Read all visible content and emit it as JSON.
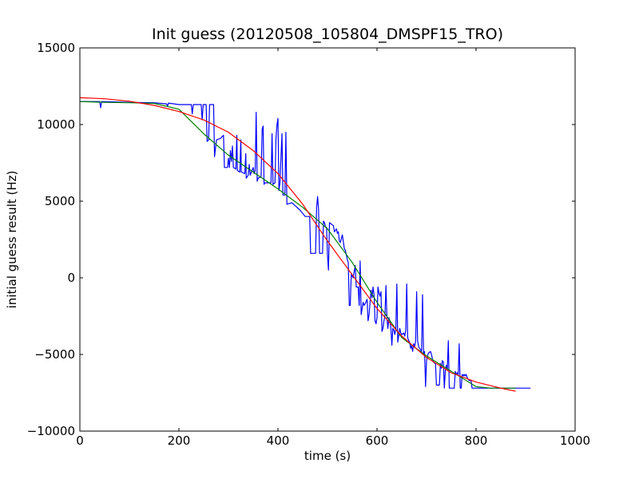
{
  "chart_data": {
    "type": "line",
    "title": "Init guess (20120508_105804_DMSPF15_TRO)",
    "xlabel": "time (s)",
    "ylabel": "initial guess result (Hz)",
    "xlim": [
      0,
      1000
    ],
    "ylim": [
      -10000,
      15000
    ],
    "xticks": [
      0,
      200,
      400,
      600,
      800,
      1000
    ],
    "yticks": [
      -10000,
      -5000,
      0,
      5000,
      10000,
      15000
    ],
    "xtick_labels": [
      "0",
      "200",
      "400",
      "600",
      "800",
      "1000"
    ],
    "ytick_labels": [
      "−10000",
      "−5000",
      "0",
      "5000",
      "10000",
      "15000"
    ],
    "grid": false,
    "legend": "none",
    "series": [
      {
        "color": "#0000ff",
        "points": [
          [
            0,
            11500
          ],
          [
            40,
            11500
          ],
          [
            42,
            11100
          ],
          [
            44,
            11500
          ],
          [
            100,
            11450
          ],
          [
            150,
            11420
          ],
          [
            175,
            11350
          ],
          [
            177,
            11200
          ],
          [
            179,
            11400
          ],
          [
            200,
            11300
          ],
          [
            225,
            11300
          ],
          [
            227,
            10700
          ],
          [
            229,
            11300
          ],
          [
            245,
            11300
          ],
          [
            247,
            10300
          ],
          [
            249,
            11300
          ],
          [
            255,
            11300
          ],
          [
            257,
            8900
          ],
          [
            260,
            9000
          ],
          [
            262,
            11300
          ],
          [
            270,
            11300
          ],
          [
            272,
            7900
          ],
          [
            274,
            8500
          ],
          [
            276,
            9000
          ],
          [
            284,
            9100
          ],
          [
            290,
            9300
          ],
          [
            292,
            7200
          ],
          [
            298,
            7200
          ],
          [
            300,
            7800
          ],
          [
            302,
            7200
          ],
          [
            304,
            8300
          ],
          [
            306,
            7600
          ],
          [
            308,
            8600
          ],
          [
            310,
            7200
          ],
          [
            315,
            7100
          ],
          [
            317,
            9300
          ],
          [
            318,
            7000
          ],
          [
            323,
            6900
          ],
          [
            325,
            9000
          ],
          [
            326,
            6900
          ],
          [
            333,
            6800
          ],
          [
            335,
            8100
          ],
          [
            336,
            6500
          ],
          [
            340,
            6700
          ],
          [
            342,
            7400
          ],
          [
            344,
            6700
          ],
          [
            350,
            7200
          ],
          [
            352,
            6800
          ],
          [
            354,
            7000
          ],
          [
            356,
            10800
          ],
          [
            358,
            6300
          ],
          [
            360,
            6500
          ],
          [
            366,
            6600
          ],
          [
            368,
            9700
          ],
          [
            370,
            9900
          ],
          [
            372,
            6100
          ],
          [
            374,
            6200
          ],
          [
            386,
            6200
          ],
          [
            388,
            9400
          ],
          [
            390,
            6100
          ],
          [
            394,
            6200
          ],
          [
            396,
            9100
          ],
          [
            398,
            10000
          ],
          [
            400,
            10400
          ],
          [
            402,
            5700
          ],
          [
            404,
            6200
          ],
          [
            408,
            9400
          ],
          [
            410,
            5400
          ],
          [
            414,
            5400
          ],
          [
            416,
            9500
          ],
          [
            418,
            4800
          ],
          [
            428,
            4900
          ],
          [
            435,
            4700
          ],
          [
            445,
            4400
          ],
          [
            450,
            4200
          ],
          [
            455,
            4000
          ],
          [
            464,
            4000
          ],
          [
            466,
            1600
          ],
          [
            476,
            1600
          ],
          [
            478,
            4600
          ],
          [
            480,
            5300
          ],
          [
            482,
            4500
          ],
          [
            484,
            1600
          ],
          [
            490,
            1600
          ],
          [
            492,
            3700
          ],
          [
            494,
            3600
          ],
          [
            496,
            3300
          ],
          [
            498,
            3300
          ],
          [
            500,
            1500
          ],
          [
            502,
            500
          ],
          [
            504,
            3600
          ],
          [
            512,
            3400
          ],
          [
            514,
            3000
          ],
          [
            518,
            3200
          ],
          [
            520,
            2900
          ],
          [
            522,
            3000
          ],
          [
            524,
            2400
          ],
          [
            526,
            2300
          ],
          [
            530,
            2800
          ],
          [
            534,
            1900
          ],
          [
            536,
            1800
          ],
          [
            540,
            1200
          ],
          [
            542,
            1000
          ],
          [
            544,
            -1800
          ],
          [
            546,
            -1800
          ],
          [
            548,
            300
          ],
          [
            550,
            100
          ],
          [
            552,
            0
          ],
          [
            556,
            800
          ],
          [
            558,
            -600
          ],
          [
            562,
            -600
          ],
          [
            564,
            -1800
          ],
          [
            566,
            1100
          ],
          [
            568,
            -2400
          ],
          [
            572,
            -1600
          ],
          [
            574,
            -1800
          ],
          [
            576,
            -1700
          ],
          [
            580,
            -1400
          ],
          [
            582,
            -2800
          ],
          [
            584,
            -2400
          ],
          [
            586,
            -1600
          ],
          [
            588,
            -800
          ],
          [
            590,
            -1300
          ],
          [
            592,
            -600
          ],
          [
            594,
            -1100
          ],
          [
            596,
            -2800
          ],
          [
            598,
            -3000
          ],
          [
            600,
            -2600
          ],
          [
            602,
            -600
          ],
          [
            604,
            -1000
          ],
          [
            606,
            -1200
          ],
          [
            608,
            -900
          ],
          [
            610,
            -3500
          ],
          [
            612,
            -3300
          ],
          [
            614,
            -2800
          ],
          [
            616,
            -2500
          ],
          [
            618,
            -500
          ],
          [
            620,
            -2600
          ],
          [
            622,
            -3300
          ],
          [
            624,
            -2600
          ],
          [
            626,
            -2800
          ],
          [
            628,
            -3300
          ],
          [
            630,
            -4400
          ],
          [
            632,
            -3300
          ],
          [
            634,
            -3400
          ],
          [
            636,
            -3700
          ],
          [
            638,
            -3300
          ],
          [
            640,
            -400
          ],
          [
            642,
            -4200
          ],
          [
            646,
            -3300
          ],
          [
            648,
            -3600
          ],
          [
            650,
            -3700
          ],
          [
            654,
            -3600
          ],
          [
            656,
            -3800
          ],
          [
            658,
            -3400
          ],
          [
            660,
            -400
          ],
          [
            662,
            -3900
          ],
          [
            664,
            -4100
          ],
          [
            666,
            -4200
          ],
          [
            668,
            -4600
          ],
          [
            670,
            -4400
          ],
          [
            672,
            -4800
          ],
          [
            674,
            -4300
          ],
          [
            676,
            -4500
          ],
          [
            678,
            -4100
          ],
          [
            680,
            -900
          ],
          [
            682,
            -4100
          ],
          [
            684,
            -4500
          ],
          [
            686,
            -4600
          ],
          [
            688,
            -4700
          ],
          [
            690,
            -4800
          ],
          [
            692,
            -1100
          ],
          [
            694,
            -5000
          ],
          [
            696,
            -4800
          ],
          [
            698,
            -7100
          ],
          [
            700,
            -5400
          ],
          [
            702,
            -5100
          ],
          [
            704,
            -4900
          ],
          [
            708,
            -4800
          ],
          [
            710,
            -5000
          ],
          [
            712,
            -5300
          ],
          [
            714,
            -5500
          ],
          [
            718,
            -5600
          ],
          [
            720,
            -7000
          ],
          [
            726,
            -7000
          ],
          [
            728,
            -5600
          ],
          [
            730,
            -5900
          ],
          [
            732,
            -5400
          ],
          [
            734,
            -5500
          ],
          [
            736,
            -7200
          ],
          [
            738,
            -6000
          ],
          [
            740,
            -5700
          ],
          [
            742,
            -6000
          ],
          [
            744,
            -4100
          ],
          [
            746,
            -7200
          ],
          [
            756,
            -7200
          ],
          [
            758,
            -6100
          ],
          [
            760,
            -6300
          ],
          [
            762,
            -6200
          ],
          [
            764,
            -6300
          ],
          [
            766,
            -4300
          ],
          [
            768,
            -7200
          ],
          [
            770,
            -7200
          ],
          [
            772,
            -6300
          ],
          [
            774,
            -6400
          ],
          [
            776,
            -6300
          ],
          [
            778,
            -6400
          ],
          [
            780,
            -6300
          ],
          [
            782,
            -6500
          ],
          [
            784,
            -6600
          ],
          [
            786,
            -6700
          ],
          [
            790,
            -6700
          ],
          [
            792,
            -7200
          ],
          [
            910,
            -7200
          ]
        ]
      },
      {
        "color": "#008000",
        "points": [
          [
            0,
            11500
          ],
          [
            50,
            11450
          ],
          [
            100,
            11420
          ],
          [
            150,
            11380
          ],
          [
            200,
            11000
          ],
          [
            250,
            9400
          ],
          [
            300,
            8000
          ],
          [
            350,
            6900
          ],
          [
            400,
            5800
          ],
          [
            450,
            4600
          ],
          [
            500,
            3200
          ],
          [
            550,
            1000
          ],
          [
            600,
            -1600
          ],
          [
            650,
            -3900
          ],
          [
            700,
            -5100
          ],
          [
            750,
            -6100
          ],
          [
            800,
            -7100
          ],
          [
            830,
            -7200
          ],
          [
            880,
            -7200
          ]
        ]
      },
      {
        "color": "#ff0000",
        "points": [
          [
            0,
            11750
          ],
          [
            50,
            11680
          ],
          [
            100,
            11520
          ],
          [
            150,
            11250
          ],
          [
            200,
            10850
          ],
          [
            250,
            10300
          ],
          [
            300,
            9500
          ],
          [
            350,
            8300
          ],
          [
            400,
            6800
          ],
          [
            450,
            4800
          ],
          [
            500,
            2400
          ],
          [
            550,
            200
          ],
          [
            600,
            -2000
          ],
          [
            650,
            -3800
          ],
          [
            700,
            -5200
          ],
          [
            750,
            -6200
          ],
          [
            800,
            -6800
          ],
          [
            850,
            -7200
          ],
          [
            880,
            -7400
          ]
        ]
      }
    ]
  }
}
